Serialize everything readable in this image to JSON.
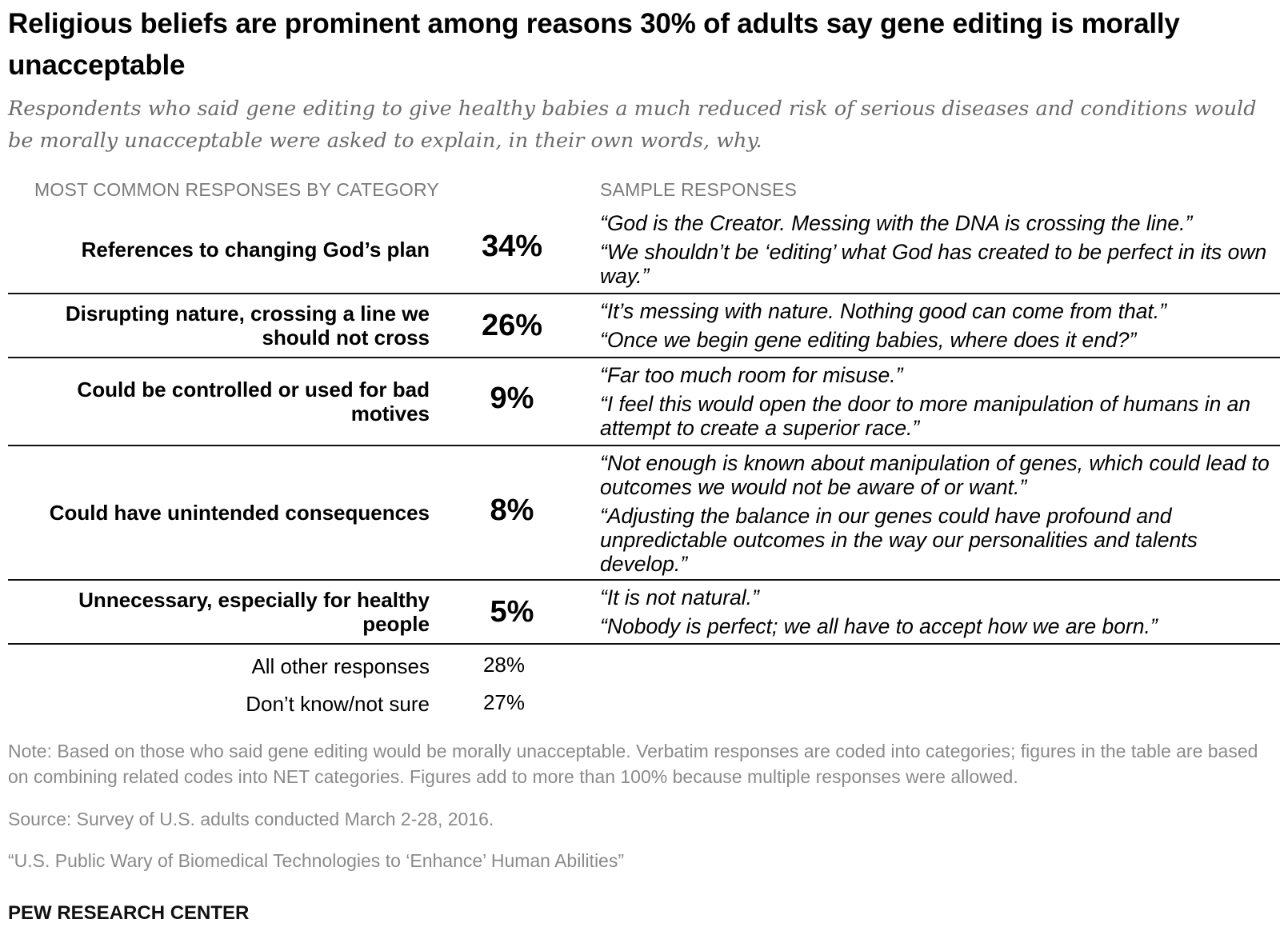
{
  "chart_data": {
    "type": "table",
    "title": "Religious beliefs are prominent among reasons 30% of adults say gene editing is morally unacceptable",
    "subtitle": "Respondents who said gene editing to give healthy babies a much reduced risk of serious diseases and conditions would be morally unacceptable were asked to explain, in their own words, why.",
    "columns": {
      "left": "MOST COMMON RESPONSES BY CATEGORY",
      "right": "SAMPLE RESPONSES"
    },
    "rows": [
      {
        "category": "References to changing God’s plan",
        "percent": "34%",
        "quotes": [
          "“God is the Creator. Messing with the DNA is crossing the line.”",
          "“We shouldn’t be ‘editing’ what God has created to be perfect in its own way.”"
        ]
      },
      {
        "category": "Disrupting nature, crossing a line we should not cross",
        "percent": "26%",
        "quotes": [
          "“It’s messing with nature. Nothing good can come from that.”",
          "“Once we begin gene editing babies, where does it end?”"
        ]
      },
      {
        "category": "Could be controlled or used for bad motives",
        "percent": "9%",
        "quotes": [
          "“Far too much room for misuse.”",
          "“I feel this would open the door to more manipulation of humans in an attempt to create a superior race.”"
        ]
      },
      {
        "category": "Could have unintended consequences",
        "percent": "8%",
        "quotes": [
          "“Not enough is known about manipulation of genes, which could lead to outcomes we would not be aware of or want.”",
          "“Adjusting the balance in our genes could have profound and unpredictable outcomes in the way our personalities and talents develop.”"
        ]
      },
      {
        "category": "Unnecessary, especially for healthy people",
        "percent": "5%",
        "quotes": [
          "“It is not natural.”",
          "“Nobody is perfect; we all have to accept how we are born.”"
        ]
      }
    ],
    "other_rows": [
      {
        "label": "All other responses",
        "percent": "28%"
      },
      {
        "label": "Don’t know/not sure",
        "percent": "27%"
      }
    ]
  },
  "footer": {
    "note": "Note: Based on those who said gene editing would be morally unacceptable. Verbatim responses are coded into categories; figures in the table are based on combining related codes into NET categories. Figures add to more than 100% because multiple responses were allowed.",
    "source": "Source: Survey of U.S. adults conducted March 2-28, 2016.",
    "report": "“U.S. Public Wary of Biomedical Technologies to ‘Enhance’ Human Abilities”",
    "brand": "PEW RESEARCH CENTER"
  }
}
